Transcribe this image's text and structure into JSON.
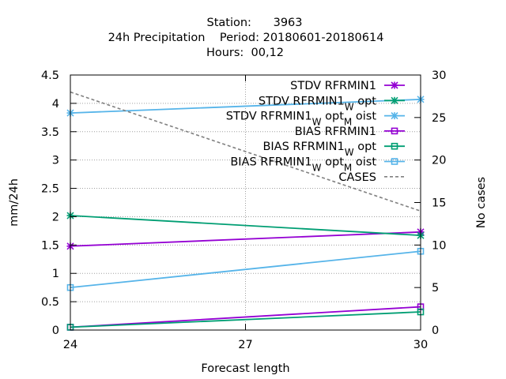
{
  "chart_data": {
    "type": "line",
    "title_lines": [
      "Station:      3963",
      "24h Precipitation    Period: 20180601-20180614",
      "Hours:  00,12"
    ],
    "xlabel": "Forecast length",
    "ylabel": "mm/24h",
    "y2label": "No cases",
    "x": [
      24,
      30
    ],
    "x_ticks": [
      "24",
      "27",
      "30"
    ],
    "x_tick_values": [
      24,
      27,
      30
    ],
    "xlim": [
      24,
      30
    ],
    "ylim": [
      0,
      4.5
    ],
    "y_ticks": [
      "0",
      "0.5",
      "1",
      "1.5",
      "2",
      "2.5",
      "3",
      "3.5",
      "4",
      "4.5"
    ],
    "y_tick_values": [
      0,
      0.5,
      1,
      1.5,
      2,
      2.5,
      3,
      3.5,
      4,
      4.5
    ],
    "y2lim": [
      0,
      30
    ],
    "y2_ticks": [
      "0",
      "5",
      "10",
      "15",
      "20",
      "25",
      "30"
    ],
    "y2_tick_values": [
      0,
      5,
      10,
      15,
      20,
      25,
      30
    ],
    "grid": true,
    "legend_position": "top-right",
    "series": [
      {
        "name": "STDV RFRMIN1",
        "axis": "y",
        "marker": "x",
        "color": "#9400d3",
        "values": [
          1.48,
          1.73
        ]
      },
      {
        "name": "STDV RFRMIN1_W opt",
        "axis": "y",
        "marker": "x",
        "color": "#009e73",
        "values": [
          2.02,
          1.67
        ]
      },
      {
        "name": "STDV RFRMIN1_W opt_M oist",
        "axis": "y",
        "marker": "x",
        "color": "#56b4e9",
        "values": [
          3.83,
          4.07
        ]
      },
      {
        "name": "BIAS RFRMIN1",
        "axis": "y",
        "marker": "square",
        "color": "#9400d3",
        "values": [
          0.05,
          0.41
        ]
      },
      {
        "name": "BIAS RFRMIN1_W opt",
        "axis": "y",
        "marker": "square",
        "color": "#009e73",
        "values": [
          0.05,
          0.32
        ]
      },
      {
        "name": "BIAS RFRMIN1_W opt_M oist",
        "axis": "y",
        "marker": "square",
        "color": "#56b4e9",
        "values": [
          0.75,
          1.39
        ]
      },
      {
        "name": "CASES",
        "axis": "y2",
        "marker": "none",
        "dashed": true,
        "color": "#808080",
        "values": [
          28,
          14
        ]
      }
    ]
  }
}
